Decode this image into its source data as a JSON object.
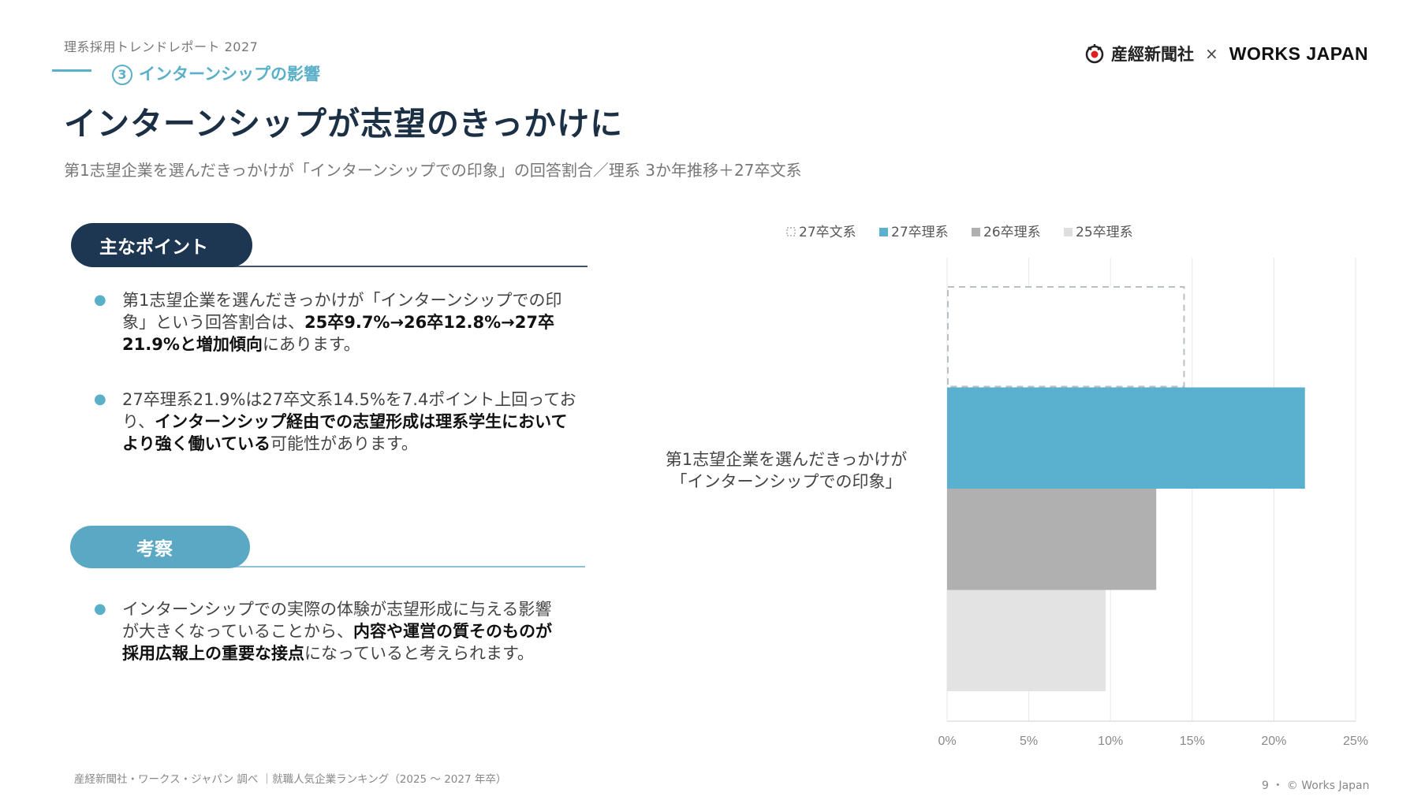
{
  "header": {
    "report_label": "理系採用トレンドレポート 2027",
    "section_number": "3",
    "section_title": "インターンシップの影響",
    "main_title": "インターンシップが志望のきっかけに",
    "subtitle": "第1志望企業を選んだきっかけが「インターンシップでの印象」の回答割合／理系 3か年推移＋27卒文系"
  },
  "logo": {
    "sankei": "産經新聞社",
    "times": "×",
    "works": "WORKS JAPAN"
  },
  "points": {
    "pill_label": "主なポイント",
    "b1_pre": "第1志望企業を選んだきっかけが「インターンシップでの印象」という回答割合は、",
    "b1_bold": "25卒9.7%→26卒12.8%→27卒21.9%と増加傾向",
    "b1_post": "にあります。",
    "b2_pre": "27卒理系21.9%は27卒文系14.5%を7.4ポイント上回っており、",
    "b2_bold": "インターンシップ経由での志望形成は理系学生においてより強く働いている",
    "b2_post": "可能性があります。"
  },
  "insight": {
    "pill_label": "考察",
    "b3_pre": "インターンシップでの実際の体験が志望形成に与える影響が大きくなっていることから、",
    "b3_bold": "内容や運営の質そのものが採用広報上の重要な接点",
    "b3_post": "になっていると考えられます。"
  },
  "footer": {
    "source": "産経新聞社・ワークス・ジャパン 調べ ｜就職人気企業ランキング（2025 ～ 2027 年卒）",
    "page": "9 ・ © Works Japan"
  },
  "chart_data": {
    "type": "bar",
    "orientation": "horizontal",
    "categories": [
      "第1志望企業を選んだきっかけが「インターンシップでの印象」"
    ],
    "category_label_lines": [
      "第1志望企業を選んだきっかけが",
      "「インターンシップでの印象」"
    ],
    "series": [
      {
        "name": "27卒文系",
        "values": [
          14.5
        ],
        "color": "#ffffff",
        "style": "dashed-outline",
        "outline": "#b8c0c6"
      },
      {
        "name": "27卒理系",
        "values": [
          21.9
        ],
        "color": "#5ab1cf"
      },
      {
        "name": "26卒理系",
        "values": [
          12.8
        ],
        "color": "#b0b0b0"
      },
      {
        "name": "25卒理系",
        "values": [
          9.7
        ],
        "color": "#e3e3e3"
      }
    ],
    "xlim": [
      0,
      25
    ],
    "xticks": [
      0,
      5,
      10,
      15,
      20,
      25
    ],
    "tick_format": "%",
    "grid": true,
    "legend": "top"
  }
}
